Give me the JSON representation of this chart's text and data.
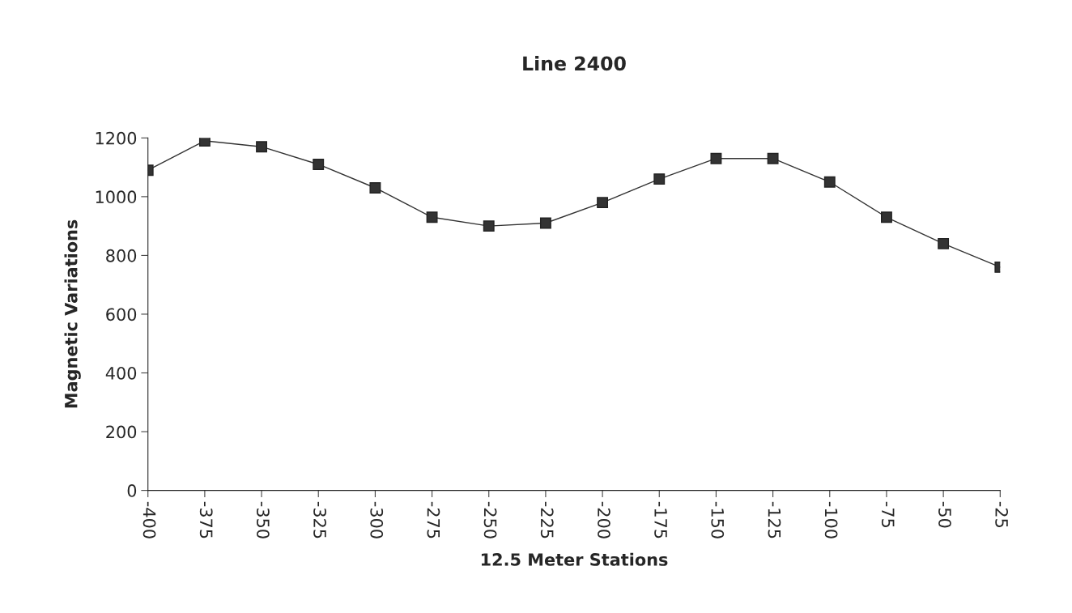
{
  "chart_data": {
    "type": "line",
    "title": "Line 2400",
    "xlabel": "12.5 Meter Stations",
    "ylabel": "Magnetic Variations",
    "categories": [
      "-400",
      "-375",
      "-350",
      "-325",
      "-300",
      "-275",
      "-250",
      "-225",
      "-200",
      "-175",
      "-150",
      "-125",
      "-100",
      "-75",
      "-50",
      "-25"
    ],
    "series": [
      {
        "color": "#333333",
        "values": [
          1090,
          1190,
          1170,
          1110,
          1030,
          930,
          900,
          910,
          980,
          1060,
          1130,
          1130,
          1050,
          930,
          840,
          760
        ]
      }
    ],
    "ylim": [
      0,
      1200
    ],
    "yticks": [
      0,
      200,
      400,
      600,
      800,
      1000,
      1200
    ],
    "grid": false,
    "legend": false,
    "marker": "square",
    "line_style": "solid"
  }
}
